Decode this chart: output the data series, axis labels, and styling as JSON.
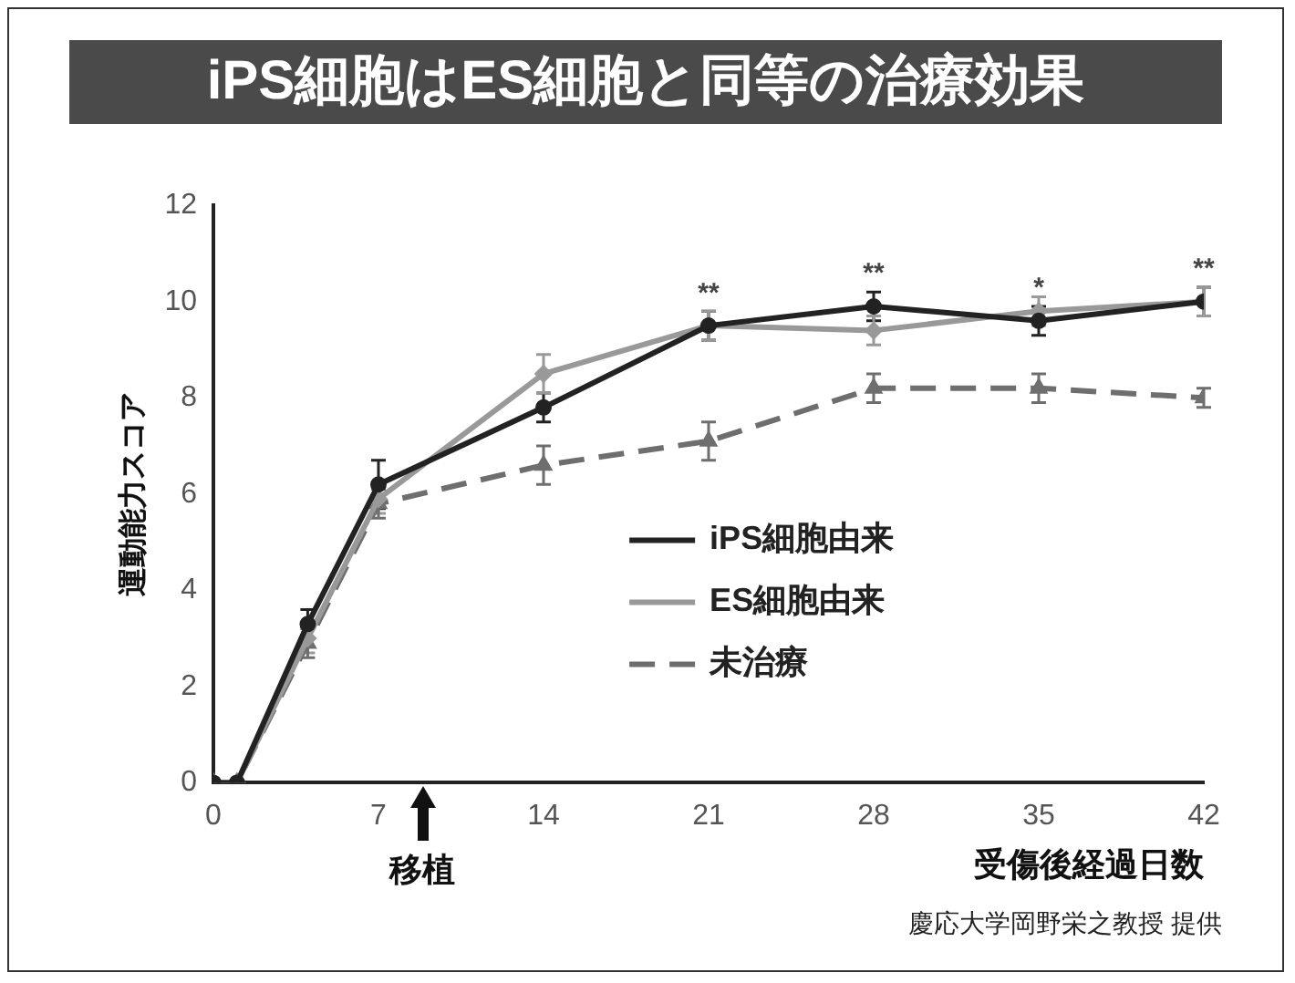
{
  "chart_data": {
    "type": "line",
    "title": "iPS細胞はES細胞と同等の治療効果",
    "ylabel": "運動能力スコア",
    "xlabel": "受傷後経過日数",
    "x": [
      0,
      1,
      4,
      7,
      14,
      21,
      28,
      35,
      42
    ],
    "series": [
      {
        "name": "iPS細胞由来",
        "color": "#222222",
        "marker": "circle",
        "line_style": "solid",
        "values": [
          0,
          0,
          3.3,
          6.2,
          7.8,
          9.5,
          9.9,
          9.6,
          10.0
        ],
        "errors": [
          null,
          null,
          0.3,
          0.5,
          0.3,
          0.3,
          0.3,
          0.3,
          0.3
        ]
      },
      {
        "name": "ES細胞由来",
        "color": "#999999",
        "marker": "diamond",
        "line_style": "solid",
        "values": [
          0,
          0,
          3.0,
          5.9,
          8.5,
          9.5,
          9.4,
          9.8,
          10.0
        ],
        "errors": [
          null,
          null,
          0.3,
          0.3,
          0.4,
          0.3,
          0.3,
          0.3,
          0.3
        ]
      },
      {
        "name": "未治療",
        "color": "#6e6e6e",
        "marker": "triangle",
        "line_style": "dashed",
        "values": [
          0,
          0,
          2.9,
          5.8,
          6.6,
          7.1,
          8.2,
          8.2,
          8.0
        ],
        "errors": [
          null,
          null,
          0.3,
          0.3,
          0.4,
          0.4,
          0.3,
          0.3,
          0.2
        ]
      }
    ],
    "xlim": [
      0,
      42
    ],
    "xticks": [
      0,
      7,
      14,
      21,
      28,
      35,
      42
    ],
    "ylim": [
      0,
      12
    ],
    "yticks": [
      0,
      2,
      4,
      6,
      8,
      10,
      12
    ],
    "grid": false,
    "legend": "bottom right",
    "annotations": [
      {
        "text": "**",
        "x": 21,
        "y": 9.8
      },
      {
        "text": "**",
        "x": 28,
        "y": 10.2
      },
      {
        "text": "*",
        "x": 35,
        "y": 9.9
      },
      {
        "text": "**",
        "x": 42,
        "y": 10.3
      },
      "移植",
      "慶応大学岡野栄之教授 提供"
    ]
  }
}
